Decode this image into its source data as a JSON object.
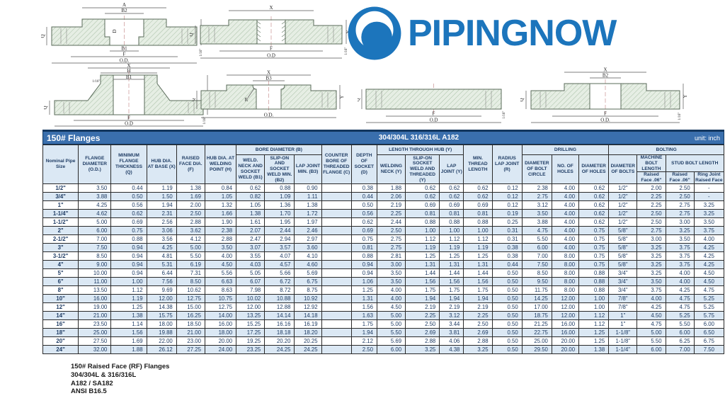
{
  "logo": {
    "text": "PIPINGNOW",
    "color": "#1c75bc"
  },
  "drawings": {
    "socket_weld": {
      "a": "A",
      "b2": "B2",
      "d": "D",
      "b1": "B1",
      "f": "F",
      "od": "O.D.",
      "q": "Q",
      "y": "Y",
      "off": "1/16\""
    },
    "threaded": {
      "x": "X",
      "f": "F",
      "od": "O.D",
      "q": "Q",
      "y": "Y",
      "off": "1/16\""
    },
    "weld_neck": {
      "x": "X",
      "h": "H",
      "b1": "B1",
      "bevel": "1/16\"",
      "q": "Q",
      "y": "Y",
      "f": "F",
      "od": "O.D",
      "off": "1/16\""
    },
    "lap_joint": {
      "x": "X",
      "b3": "B3",
      "r": "R",
      "q": "Q",
      "y": "Y",
      "od": "O.D."
    },
    "blind": {
      "q": "Q",
      "f": "F",
      "od": "O.D",
      "off": "1/16\""
    },
    "slip_on": {
      "x": "X",
      "b2": "B2",
      "q": "Q",
      "y": "Y",
      "f": "F",
      "od": "O.D.",
      "off": "1/16\""
    }
  },
  "table": {
    "title": "150# Flanges",
    "subtitle": "304/304L  316/316L  A182",
    "unit": "unit: inch",
    "headers": {
      "pipe_size": "Nominal Pipe Size",
      "od": "FLANGE DIAMETER (O.D.)",
      "q": "MINIMUM FLANGE THICKNESS (Q)",
      "x": "HUB DIA. AT BASE (X)",
      "f": "RAISED FACE DIA. (F)",
      "h": "HUB DIA. AT WELDING POINT (H)",
      "bore_group": "BORE DIAMETER (B)",
      "b1": "WELD. NECK AND SOCKET WELD (B1)",
      "b2": "SLIP-ON AND SOCKET WELD MIN. (B2)",
      "b3": "LAP JOINT MIN. (B3)",
      "c": "COUNTER BORE OF THREADED FLANGE (C)",
      "d": "DEPTH OF SOCKET (D)",
      "hub_group": "LENGTH THROUGH HUB (Y)",
      "y_wn": "WELDING NECK (Y)",
      "y_so": "SLIP-ON SOCKET WELD AND THREADED (Y)",
      "y_lj": "LAP JOINT (Y)",
      "min_thread": "MIN. THREAD LENGTH",
      "radius": "RADIUS LAP JOINT (R)",
      "drilling_group": "DRILLING",
      "bolt_circle": "DIAMETER OF BOLT CIRCLE",
      "num_holes": "NO. OF HOLES",
      "dia_holes": "DIAMETER OF HOLES",
      "bolting_group": "BOLTING",
      "dia_bolts": "DIAMETER OF BOLTS",
      "machine_bolt": "MACHINE BOLT LENGTH",
      "stud_bolt": "STUD BOLT LENGTH",
      "raised_face_mb": "Raised Face .06\"",
      "raised_face_sb": "Raised Face .06\"",
      "ring_joint": "Ring Joint Raised Face"
    },
    "rows": [
      [
        "1/2\"",
        "3.50",
        "0.44",
        "1.19",
        "1.38",
        "0.84",
        "0.62",
        "0.88",
        "0.90",
        "",
        "0.38",
        "1.88",
        "0.62",
        "0.62",
        "0.62",
        "0.12",
        "2.38",
        "4.00",
        "0.62",
        "1/2\"",
        "2.00",
        "2.50",
        "-"
      ],
      [
        "3/4\"",
        "3.88",
        "0.50",
        "1.50",
        "1.69",
        "1.05",
        "0.82",
        "1.09",
        "1.11",
        "",
        "0.44",
        "2.06",
        "0.62",
        "0.62",
        "0.62",
        "0.12",
        "2.75",
        "4.00",
        "0.62",
        "1/2\"",
        "2.25",
        "2.50",
        "-"
      ],
      [
        "1\"",
        "4.25",
        "0.56",
        "1.94",
        "2.00",
        "1.32",
        "1.05",
        "1.36",
        "1.38",
        "",
        "0.50",
        "2.19",
        "0.69",
        "0.69",
        "0.69",
        "0.12",
        "3.12",
        "4.00",
        "0.62",
        "1/2\"",
        "2.25",
        "2.75",
        "3.25"
      ],
      [
        "1-1/4\"",
        "4.62",
        "0.62",
        "2.31",
        "2.50",
        "1.66",
        "1.38",
        "1.70",
        "1.72",
        "",
        "0.56",
        "2.25",
        "0.81",
        "0.81",
        "0.81",
        "0.19",
        "3.50",
        "4.00",
        "0.62",
        "1/2\"",
        "2.50",
        "2.75",
        "3.25"
      ],
      [
        "1-1/2\"",
        "5.00",
        "0.69",
        "2.56",
        "2.88",
        "1.90",
        "1.61",
        "1.95",
        "1.97",
        "",
        "0.62",
        "2.44",
        "0.88",
        "0.88",
        "0.88",
        "0.25",
        "3.88",
        "4.00",
        "0.62",
        "1/2\"",
        "2.50",
        "3.00",
        "3.50"
      ],
      [
        "2\"",
        "6.00",
        "0.75",
        "3.06",
        "3.62",
        "2.38",
        "2.07",
        "2.44",
        "2.46",
        "",
        "0.69",
        "2.50",
        "1.00",
        "1.00",
        "1.00",
        "0.31",
        "4.75",
        "4.00",
        "0.75",
        "5/8\"",
        "2.75",
        "3.25",
        "3.75"
      ],
      [
        "2-1/2\"",
        "7.00",
        "0.88",
        "3.56",
        "4.12",
        "2.88",
        "2.47",
        "2.94",
        "2.97",
        "",
        "0.75",
        "2.75",
        "1.12",
        "1.12",
        "1.12",
        "0.31",
        "5.50",
        "4.00",
        "0.75",
        "5/8\"",
        "3.00",
        "3.50",
        "4.00"
      ],
      [
        "3\"",
        "7.50",
        "0.94",
        "4.25",
        "5.00",
        "3.50",
        "3.07",
        "3.57",
        "3.60",
        "",
        "0.81",
        "2.75",
        "1.19",
        "1.19",
        "1.19",
        "0.38",
        "6.00",
        "4.00",
        "0.75",
        "5/8\"",
        "3.25",
        "3.75",
        "4.25"
      ],
      [
        "3-1/2\"",
        "8.50",
        "0.94",
        "4.81",
        "5.50",
        "4.00",
        "3.55",
        "4.07",
        "4.10",
        "",
        "0.88",
        "2.81",
        "1.25",
        "1.25",
        "1.25",
        "0.38",
        "7.00",
        "8.00",
        "0.75",
        "5/8\"",
        "3.25",
        "3.75",
        "4.25"
      ],
      [
        "4\"",
        "9.00",
        "0.94",
        "5.31",
        "6.19",
        "4.50",
        "4.03",
        "4.57",
        "4.60",
        "",
        "0.94",
        "3.00",
        "1.31",
        "1.31",
        "1.31",
        "0.44",
        "7.50",
        "8.00",
        "0.75",
        "5/8\"",
        "3.25",
        "3.75",
        "4.25"
      ],
      [
        "5\"",
        "10.00",
        "0.94",
        "6.44",
        "7.31",
        "5.56",
        "5.05",
        "5.66",
        "5.69",
        "",
        "0.94",
        "3.50",
        "1.44",
        "1.44",
        "1.44",
        "0.50",
        "8.50",
        "8.00",
        "0.88",
        "3/4\"",
        "3.25",
        "4.00",
        "4.50"
      ],
      [
        "6\"",
        "11.00",
        "1.00",
        "7.56",
        "8.50",
        "6.63",
        "6.07",
        "6.72",
        "6.75",
        "",
        "1.06",
        "3.50",
        "1.56",
        "1.56",
        "1.56",
        "0.50",
        "9.50",
        "8.00",
        "0.88",
        "3/4\"",
        "3.50",
        "4.00",
        "4.50"
      ],
      [
        "8\"",
        "13.50",
        "1.12",
        "9.69",
        "10.62",
        "8.63",
        "7.98",
        "8.72",
        "8.75",
        "",
        "1.25",
        "4.00",
        "1.75",
        "1.75",
        "1.75",
        "0.50",
        "11.75",
        "8.00",
        "0.88",
        "3/4\"",
        "3.75",
        "4.25",
        "4.75"
      ],
      [
        "10\"",
        "16.00",
        "1.19",
        "12.00",
        "12.75",
        "10.75",
        "10.02",
        "10.88",
        "10.92",
        "",
        "1.31",
        "4.00",
        "1.94",
        "1.94",
        "1.94",
        "0.50",
        "14.25",
        "12.00",
        "1.00",
        "7/8\"",
        "4.00",
        "4.75",
        "5.25"
      ],
      [
        "12\"",
        "19.00",
        "1.25",
        "14.38",
        "15.00",
        "12.75",
        "12.00",
        "12.88",
        "12.92",
        "",
        "1.56",
        "4.50",
        "2.19",
        "2.19",
        "2.19",
        "0.50",
        "17.00",
        "12.00",
        "1.00",
        "7/8\"",
        "4.25",
        "4.75",
        "5.25"
      ],
      [
        "14\"",
        "21.00",
        "1.38",
        "15.75",
        "16.25",
        "14.00",
        "13.25",
        "14.14",
        "14.18",
        "",
        "1.63",
        "5.00",
        "2.25",
        "3.12",
        "2.25",
        "0.50",
        "18.75",
        "12.00",
        "1.12",
        "1\"",
        "4.50",
        "5.25",
        "5.75"
      ],
      [
        "16\"",
        "23.50",
        "1.14",
        "18.00",
        "18.50",
        "16.00",
        "15.25",
        "16.16",
        "16.19",
        "",
        "1.75",
        "5.00",
        "2.50",
        "3.44",
        "2.50",
        "0.50",
        "21.25",
        "16.00",
        "1.12",
        "1\"",
        "4.75",
        "5.50",
        "6.00"
      ],
      [
        "18\"",
        "25.00",
        "1.56",
        "19.88",
        "21.00",
        "18.00",
        "17.25",
        "18.18",
        "18.20",
        "",
        "1.94",
        "5.50",
        "2.69",
        "3.81",
        "2.69",
        "0.50",
        "22.75",
        "16.00",
        "1.25",
        "1-1/8\"",
        "5.00",
        "6.00",
        "6.50"
      ],
      [
        "20\"",
        "27.50",
        "1.69",
        "22.00",
        "23.00",
        "20.00",
        "19.25",
        "20.20",
        "20.25",
        "",
        "2.12",
        "5.69",
        "2.88",
        "4.06",
        "2.88",
        "0.50",
        "25.00",
        "20.00",
        "1.25",
        "1-1/8\"",
        "5.50",
        "6.25",
        "6.75"
      ],
      [
        "24\"",
        "32.00",
        "1.88",
        "26.12",
        "27.25",
        "24.00",
        "23.25",
        "24.25",
        "24.25",
        "",
        "2.50",
        "6.00",
        "3.25",
        "4.38",
        "3.25",
        "0.50",
        "29.50",
        "20.00",
        "1.38",
        "1-1/4\"",
        "6.00",
        "7.00",
        "7.50"
      ]
    ]
  },
  "footer": {
    "lines": [
      "150# Raised Face (RF) Flanges",
      "304/304L & 316/316L",
      "A182 / SA182",
      "ANSI B16.5"
    ]
  }
}
